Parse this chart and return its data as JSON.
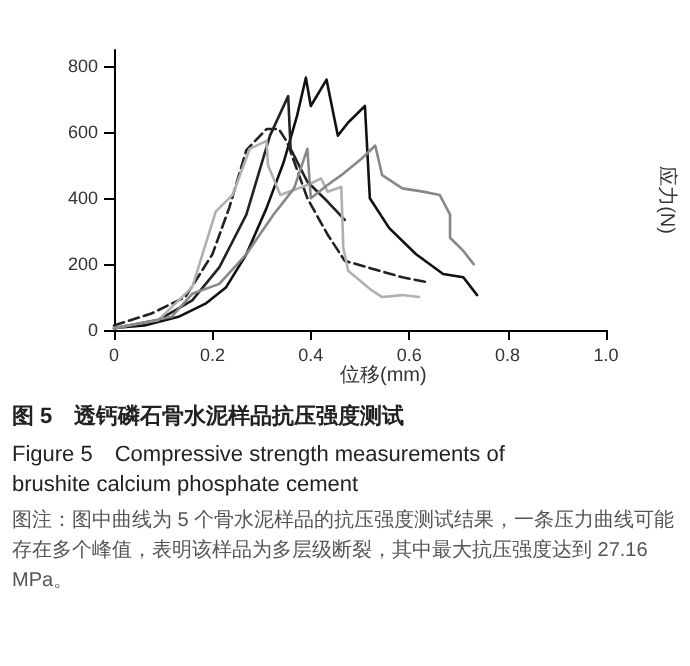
{
  "chart_data": {
    "type": "line",
    "title": "图 5　透钙磷石骨水泥样品抗压强度测试",
    "subtitle": "Figure 5　Compressive strength measurements of brushite calcium phosphate cement",
    "annotations": [
      "图注：图中曲线为 5 个骨水泥样品的抗压强度测试结果，一条压力曲线可能存在多个峰值，表明该样品为多层级断裂，其中最大抗压强度达到 27.16 MPa。"
    ],
    "xlabel": "位移(mm)",
    "ylabel": "应力(N)",
    "xlim": [
      0,
      1
    ],
    "ylim": [
      0,
      850
    ],
    "xticks": [
      0,
      0.2,
      0.4,
      0.6,
      0.8,
      {
        "value": 1,
        "label": "1.0"
      }
    ],
    "yticks": [
      0,
      200,
      400,
      600,
      800
    ],
    "grid": false,
    "marker": "none",
    "line_style": "solid",
    "series": [
      {
        "color": "#111111",
        "x": [
          0,
          0.062,
          0.131,
          0.186,
          0.228,
          0.269,
          0.31,
          0.345,
          0.372,
          0.39,
          0.4,
          0.432,
          0.455,
          0.476,
          0.51,
          0.52,
          0.559,
          0.614,
          0.669,
          0.71,
          0.738
        ],
        "values": [
          6,
          14,
          40,
          80,
          130,
          230,
          370,
          510,
          650,
          766,
          680,
          760,
          590,
          630,
          680,
          400,
          310,
          230,
          170,
          160,
          106
        ]
      },
      {
        "color": "#222222",
        "x": [
          0,
          0.09,
          0.159,
          0.214,
          0.269,
          0.317,
          0.354,
          0.359,
          0.393,
          0.434,
          0.469
        ],
        "values": [
          6,
          30,
          90,
          190,
          350,
          590,
          710,
          550,
          450,
          390,
          334
        ]
      },
      {
        "color": "#222222",
        "line_style": "dashed",
        "x": [
          0,
          0.076,
          0.145,
          0.2,
          0.234,
          0.269,
          0.31,
          0.335,
          0.352,
          0.393,
          0.434,
          0.469,
          0.586,
          0.634
        ],
        "values": [
          14,
          50,
          100,
          230,
          370,
          546,
          610,
          610,
          570,
          400,
          290,
          210,
          160,
          146
        ]
      },
      {
        "color": "#b0b0b0",
        "x": [
          0,
          0.09,
          0.159,
          0.207,
          0.241,
          0.276,
          0.31,
          0.313,
          0.338,
          0.393,
          0.421,
          0.434,
          0.462,
          0.466,
          0.476,
          0.524,
          0.545,
          0.586,
          0.62
        ],
        "values": [
          6,
          30,
          130,
          360,
          410,
          550,
          574,
          500,
          410,
          440,
          460,
          420,
          434,
          250,
          180,
          120,
          100,
          106,
          100
        ]
      },
      {
        "color": "#888888",
        "x": [
          0,
          0.117,
          0.159,
          0.214,
          0.269,
          0.324,
          0.366,
          0.393,
          0.4,
          0.434,
          0.462,
          0.503,
          0.531,
          0.545,
          0.586,
          0.628,
          0.662,
          0.683,
          0.683,
          0.71,
          0.731
        ],
        "values": [
          4,
          40,
          110,
          140,
          230,
          350,
          430,
          550,
          400,
          440,
          470,
          520,
          560,
          470,
          430,
          420,
          410,
          350,
          280,
          240,
          200
        ]
      }
    ]
  }
}
